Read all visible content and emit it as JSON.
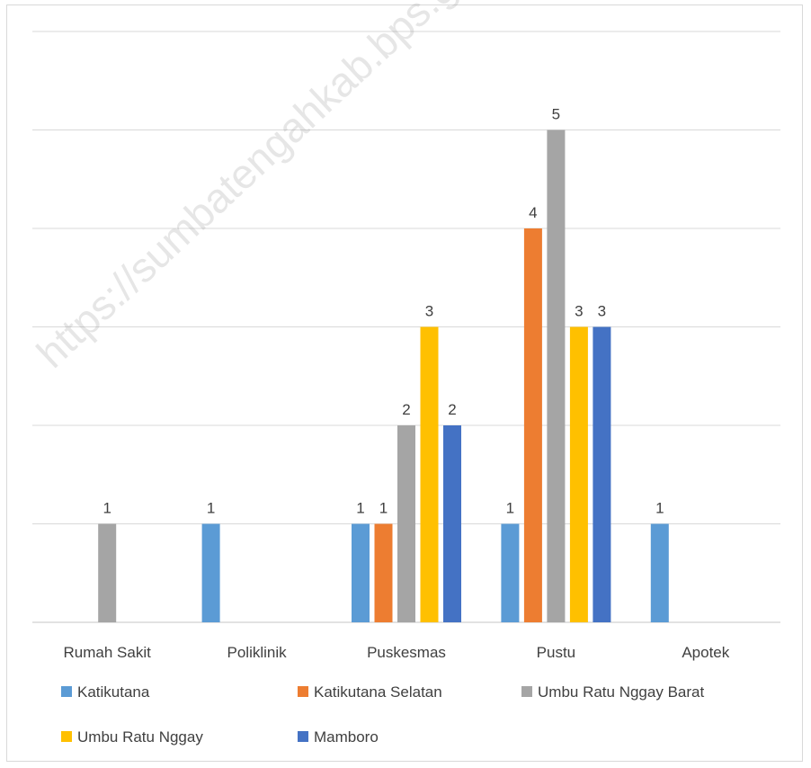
{
  "chart_data": {
    "type": "bar",
    "categories": [
      "Rumah Sakit",
      "Poliklinik",
      "Puskesmas",
      "Pustu",
      "Apotek"
    ],
    "series": [
      {
        "name": "Katikutana",
        "color": "#5b9bd5",
        "values": [
          null,
          1,
          1,
          1,
          1
        ]
      },
      {
        "name": "Katikutana Selatan",
        "color": "#ed7d31",
        "values": [
          null,
          null,
          1,
          4,
          null
        ]
      },
      {
        "name": "Umbu Ratu Nggay Barat",
        "color": "#a5a5a5",
        "values": [
          1,
          null,
          2,
          5,
          null
        ]
      },
      {
        "name": "Umbu Ratu Nggay",
        "color": "#ffc000",
        "values": [
          null,
          null,
          3,
          3,
          null
        ]
      },
      {
        "name": "Mamboro",
        "color": "#4472c4",
        "values": [
          null,
          null,
          2,
          3,
          null
        ]
      }
    ],
    "ylim": [
      0,
      6
    ],
    "grid": true,
    "legend_position": "bottom",
    "data_labels": true
  },
  "watermark": "https://sumbatengahkab.bps.go.id"
}
